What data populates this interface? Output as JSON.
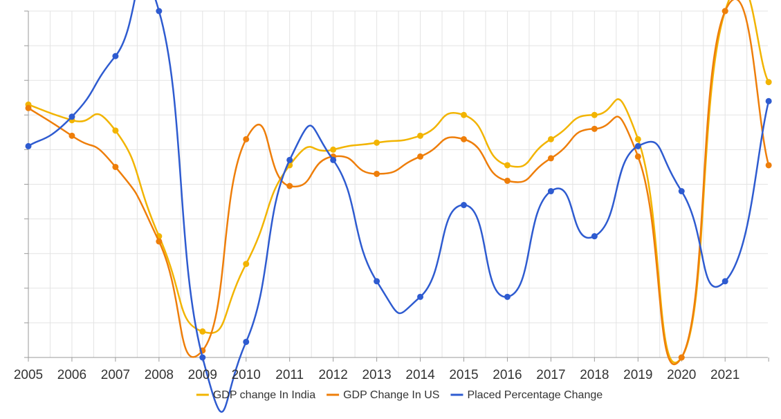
{
  "chart_data": {
    "type": "line",
    "categories": [
      "2005",
      "2006",
      "2007",
      "2008",
      "2009",
      "2010",
      "2011",
      "2012",
      "2013",
      "2014",
      "2015",
      "2016",
      "2017",
      "2018",
      "2019",
      "2020",
      "2021",
      ""
    ],
    "ylim": [
      0,
      100
    ],
    "grid": true,
    "legend_position": "bottom",
    "series": [
      {
        "name": "GDP change In India",
        "color": "#f2b400",
        "values": [
          73,
          68.5,
          65.5,
          35,
          7.5,
          27,
          55.5,
          60,
          62,
          64,
          70,
          55.5,
          63,
          70,
          63,
          0,
          100,
          79.5
        ]
      },
      {
        "name": "GDP Change In US",
        "color": "#ee7e0a",
        "values": [
          72,
          64,
          55,
          33.5,
          2,
          63,
          49.5,
          58,
          53,
          58,
          63,
          51,
          57.5,
          66,
          58,
          0,
          100,
          55.5
        ]
      },
      {
        "name": "Placed Percentage Change",
        "color": "#2e5bd0",
        "values": [
          61,
          69.5,
          87,
          100,
          0,
          4.5,
          57,
          57,
          22,
          17.5,
          44,
          17.5,
          48,
          35,
          61,
          48,
          22,
          74
        ]
      }
    ]
  }
}
